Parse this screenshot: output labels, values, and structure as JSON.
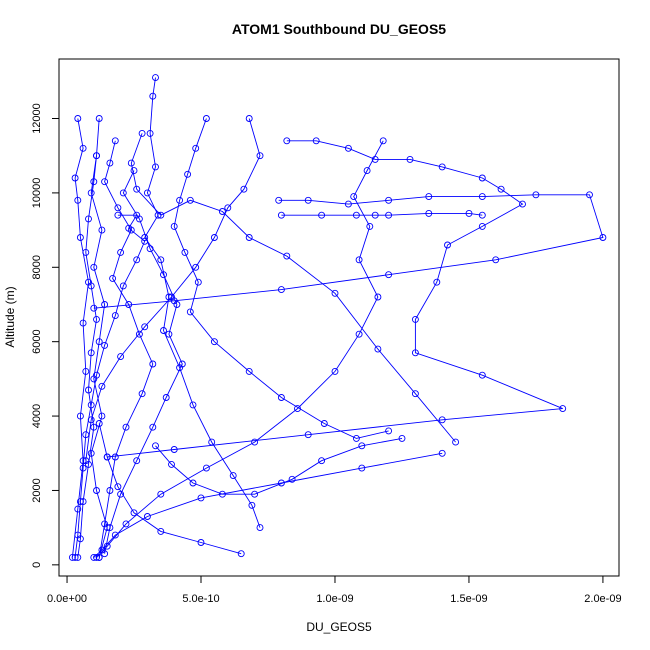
{
  "chart_data": {
    "type": "line",
    "title": "ATOM1 Southbound DU_GEOS5",
    "xlabel": "DU_GEOS5",
    "ylabel": "Altitude (m)",
    "xlim": [
      -3e-11,
      2.06e-09
    ],
    "ylim": [
      -300,
      13600
    ],
    "x_ticks": [
      0,
      5e-10,
      1e-09,
      1.5e-09,
      2e-09
    ],
    "x_tick_labels": [
      "0.0e+00",
      "5.0e-10",
      "1.0e-09",
      "1.5e-09",
      "2.0e-09"
    ],
    "y_ticks": [
      0,
      2000,
      4000,
      6000,
      8000,
      10000,
      12000
    ],
    "y_tick_labels": [
      "0",
      "2000",
      "4000",
      "6000",
      "8000",
      "10000",
      "12000"
    ],
    "grid": false,
    "color": "#0000ff",
    "marker": "open-circle",
    "series": [
      {
        "points": [
          [
            2e-11,
            200
          ],
          [
            4e-11,
            1500
          ],
          [
            6e-11,
            2800
          ],
          [
            5e-11,
            4000
          ],
          [
            7e-11,
            5200
          ],
          [
            6e-11,
            6500
          ],
          [
            8e-11,
            7600
          ],
          [
            5e-11,
            8800
          ],
          [
            4e-11,
            9800
          ],
          [
            3e-11,
            10400
          ],
          [
            6e-11,
            11200
          ],
          [
            4e-11,
            12000
          ]
        ]
      },
      {
        "points": [
          [
            1.2e-10,
            12000
          ],
          [
            1.1e-10,
            11000
          ],
          [
            9e-11,
            10000
          ],
          [
            1.3e-10,
            9000
          ],
          [
            1e-10,
            8000
          ],
          [
            1.4e-10,
            7000
          ],
          [
            1.2e-10,
            6000
          ],
          [
            1e-10,
            5000
          ],
          [
            1.3e-10,
            4000
          ],
          [
            9e-11,
            3000
          ],
          [
            1.1e-10,
            2000
          ],
          [
            1.5e-10,
            1000
          ],
          [
            1.2e-10,
            200
          ]
        ]
      },
      {
        "points": [
          [
            3.3e-10,
            13100
          ],
          [
            3.2e-10,
            12600
          ],
          [
            3.1e-10,
            11600
          ],
          [
            3.3e-10,
            10700
          ],
          [
            3e-10,
            10000
          ],
          [
            3.4e-10,
            9400
          ],
          [
            2.9e-10,
            8800
          ],
          [
            3.5e-10,
            8200
          ],
          [
            3.8e-10,
            7200
          ],
          [
            3.6e-10,
            6300
          ],
          [
            4.2e-10,
            5300
          ],
          [
            4.7e-10,
            4300
          ],
          [
            5.4e-10,
            3300
          ],
          [
            6.2e-10,
            2400
          ],
          [
            6.9e-10,
            1600
          ],
          [
            7.2e-10,
            1000
          ]
        ]
      },
      {
        "points": [
          [
            2.8e-10,
            11600
          ],
          [
            2.4e-10,
            10800
          ],
          [
            2.6e-10,
            10100
          ],
          [
            3.5e-10,
            9400
          ],
          [
            4.6e-10,
            9800
          ],
          [
            5.8e-10,
            9500
          ],
          [
            6.8e-10,
            8800
          ],
          [
            8.2e-10,
            8300
          ],
          [
            1e-09,
            7300
          ],
          [
            1.16e-09,
            5800
          ],
          [
            1.3e-09,
            4600
          ],
          [
            1.45e-09,
            3300
          ]
        ]
      },
      {
        "points": [
          [
            8e-10,
            9400
          ],
          [
            9.5e-10,
            9400
          ],
          [
            1.08e-09,
            9400
          ],
          [
            1.15e-09,
            9400
          ],
          [
            1.2e-09,
            9400
          ],
          [
            1.35e-09,
            9450
          ],
          [
            1.5e-09,
            9450
          ],
          [
            1.55e-09,
            9400
          ]
        ]
      },
      {
        "points": [
          [
            7.9e-10,
            9800
          ],
          [
            9e-10,
            9800
          ],
          [
            1.05e-09,
            9700
          ],
          [
            1.2e-09,
            9800
          ],
          [
            1.35e-09,
            9900
          ],
          [
            1.55e-09,
            9900
          ],
          [
            1.75e-09,
            9950
          ],
          [
            1.95e-09,
            9950
          ],
          [
            2e-09,
            8800
          ],
          [
            1.6e-09,
            8200
          ],
          [
            1.2e-09,
            7800
          ],
          [
            8e-10,
            7400
          ],
          [
            4e-10,
            7100
          ],
          [
            1e-10,
            6900
          ]
        ]
      },
      {
        "points": [
          [
            8.2e-10,
            11400
          ],
          [
            9.3e-10,
            11400
          ],
          [
            1.05e-09,
            11200
          ],
          [
            1.15e-09,
            10900
          ],
          [
            1.28e-09,
            10900
          ],
          [
            1.4e-09,
            10700
          ],
          [
            1.55e-09,
            10400
          ],
          [
            1.62e-09,
            10100
          ],
          [
            1.7e-09,
            9700
          ],
          [
            1.55e-09,
            9100
          ],
          [
            1.42e-09,
            8600
          ],
          [
            1.38e-09,
            7600
          ],
          [
            1.3e-09,
            6600
          ],
          [
            1.3e-09,
            5700
          ],
          [
            1.55e-09,
            5100
          ],
          [
            1.85e-09,
            4200
          ],
          [
            1.4e-09,
            3900
          ],
          [
            9e-10,
            3500
          ],
          [
            4e-10,
            3100
          ],
          [
            1.5e-10,
            2900
          ]
        ]
      },
      {
        "points": [
          [
            1.18e-09,
            11400
          ],
          [
            1.12e-09,
            10600
          ],
          [
            1.07e-09,
            9900
          ],
          [
            1.13e-09,
            9100
          ],
          [
            1.09e-09,
            8200
          ],
          [
            1.16e-09,
            7200
          ],
          [
            1.09e-09,
            6200
          ],
          [
            1e-09,
            5200
          ],
          [
            8.6e-10,
            4200
          ],
          [
            7e-10,
            3300
          ],
          [
            5.2e-10,
            2600
          ],
          [
            3.5e-10,
            1900
          ],
          [
            2.2e-10,
            1100
          ],
          [
            1.5e-10,
            500
          ],
          [
            1.1e-10,
            200
          ]
        ]
      },
      {
        "points": [
          [
            1.4e-09,
            3000
          ],
          [
            1.1e-09,
            2600
          ],
          [
            8e-10,
            2200
          ],
          [
            5e-10,
            1800
          ],
          [
            3e-10,
            1300
          ],
          [
            1.8e-10,
            800
          ],
          [
            1.3e-10,
            400
          ],
          [
            1e-10,
            200
          ]
        ]
      },
      {
        "points": [
          [
            6.5e-10,
            300
          ],
          [
            5e-10,
            600
          ],
          [
            3.5e-10,
            900
          ],
          [
            2.5e-10,
            1400
          ],
          [
            1.9e-10,
            2100
          ],
          [
            1.5e-10,
            2900
          ],
          [
            1.2e-10,
            3800
          ]
        ]
      },
      {
        "points": [
          [
            1.8e-10,
            11400
          ],
          [
            1.6e-10,
            10800
          ],
          [
            1.4e-10,
            10300
          ],
          [
            1.9e-10,
            9600
          ],
          [
            2.4e-10,
            9000
          ],
          [
            2e-10,
            8400
          ],
          [
            1.7e-10,
            7700
          ],
          [
            2.3e-10,
            7000
          ],
          [
            2.7e-10,
            6200
          ],
          [
            3.2e-10,
            5400
          ],
          [
            2.8e-10,
            4600
          ],
          [
            2.2e-10,
            3700
          ],
          [
            1.8e-10,
            2900
          ],
          [
            1.6e-10,
            2000
          ],
          [
            1.4e-10,
            1100
          ],
          [
            1.2e-10,
            200
          ]
        ]
      },
      {
        "points": [
          [
            5.2e-10,
            12000
          ],
          [
            4.8e-10,
            11200
          ],
          [
            4.5e-10,
            10500
          ],
          [
            4.2e-10,
            9800
          ],
          [
            4e-10,
            9100
          ],
          [
            4.4e-10,
            8400
          ],
          [
            4.9e-10,
            7600
          ],
          [
            4.6e-10,
            6800
          ],
          [
            5.5e-10,
            6000
          ],
          [
            6.8e-10,
            5200
          ],
          [
            8e-10,
            4500
          ],
          [
            9.6e-10,
            3800
          ],
          [
            1.08e-09,
            3400
          ],
          [
            1.2e-09,
            3600
          ]
        ]
      },
      {
        "points": [
          [
            6.8e-10,
            12000
          ],
          [
            7.2e-10,
            11000
          ],
          [
            6.6e-10,
            10100
          ],
          [
            6e-10,
            9600
          ],
          [
            5.5e-10,
            8800
          ],
          [
            4.8e-10,
            8000
          ],
          [
            3.9e-10,
            7200
          ],
          [
            2.9e-10,
            6400
          ],
          [
            2e-10,
            5600
          ],
          [
            1.3e-10,
            4800
          ],
          [
            9e-11,
            3900
          ],
          [
            7e-11,
            2800
          ]
        ]
      },
      {
        "points": [
          [
            1.9e-10,
            9400
          ],
          [
            2.6e-10,
            9400
          ],
          [
            2.3e-10,
            9050
          ],
          [
            2.9e-10,
            8700
          ],
          [
            2.6e-10,
            8200
          ],
          [
            2.1e-10,
            7500
          ],
          [
            1.8e-10,
            6700
          ],
          [
            1.4e-10,
            5900
          ],
          [
            1.1e-10,
            5100
          ],
          [
            9e-11,
            4300
          ],
          [
            7e-11,
            3500
          ],
          [
            6e-11,
            2600
          ],
          [
            5e-11,
            1700
          ],
          [
            4e-11,
            800
          ],
          [
            3e-11,
            200
          ]
        ]
      },
      {
        "points": [
          [
            3.3e-10,
            3200
          ],
          [
            3.9e-10,
            2700
          ],
          [
            4.7e-10,
            2200
          ],
          [
            5.8e-10,
            1900
          ],
          [
            7e-10,
            1900
          ],
          [
            8.4e-10,
            2300
          ],
          [
            9.5e-10,
            2800
          ],
          [
            1.1e-09,
            3200
          ],
          [
            1.25e-09,
            3400
          ]
        ]
      },
      {
        "points": [
          [
            1.1e-10,
            11000
          ],
          [
            1e-10,
            10300
          ],
          [
            8e-11,
            9300
          ],
          [
            7e-11,
            8400
          ],
          [
            9e-11,
            7500
          ],
          [
            1.1e-10,
            6600
          ],
          [
            9e-11,
            5700
          ],
          [
            8e-11,
            4700
          ],
          [
            1e-10,
            3700
          ],
          [
            8e-11,
            2700
          ],
          [
            6e-11,
            1700
          ],
          [
            5e-11,
            700
          ],
          [
            4e-11,
            200
          ]
        ]
      },
      {
        "points": [
          [
            2.5e-10,
            10600
          ],
          [
            2.1e-10,
            10000
          ],
          [
            2.7e-10,
            9300
          ],
          [
            3.1e-10,
            8500
          ],
          [
            3.6e-10,
            7800
          ],
          [
            4.1e-10,
            7000
          ],
          [
            3.8e-10,
            6200
          ],
          [
            4.3e-10,
            5400
          ],
          [
            3.7e-10,
            4500
          ],
          [
            3.2e-10,
            3700
          ],
          [
            2.6e-10,
            2800
          ],
          [
            2e-10,
            1900
          ],
          [
            1.6e-10,
            1000
          ],
          [
            1.4e-10,
            300
          ]
        ]
      }
    ]
  }
}
